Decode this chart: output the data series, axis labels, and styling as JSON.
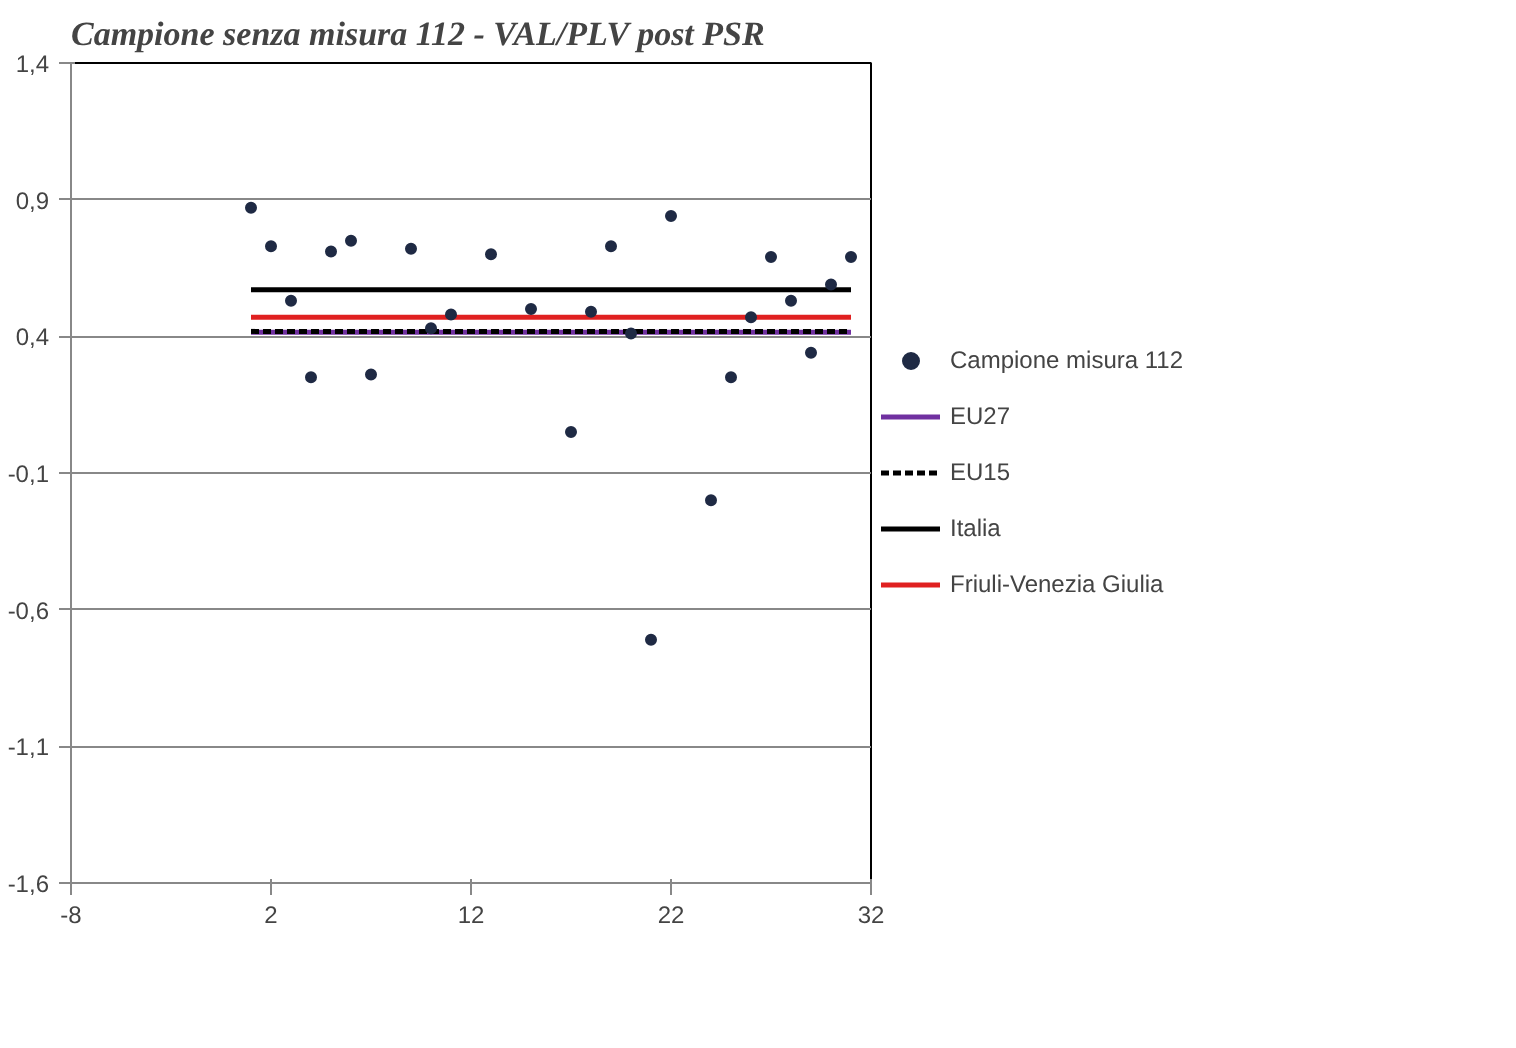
{
  "chart_data": {
    "type": "scatter",
    "title": "Campione senza misura 112 - VAL/PLV post PSR",
    "xlim": [
      -8,
      32
    ],
    "xticks": [
      -8,
      2,
      12,
      22,
      32
    ],
    "ylim": [
      -1.6,
      1.4
    ],
    "yticks": [
      {
        "value": -1.6,
        "label": "-1,6"
      },
      {
        "value": -1.1,
        "label": "-1,1"
      },
      {
        "value": -0.6,
        "label": "-0,6"
      },
      {
        "value": -0.1,
        "label": "-0,1"
      },
      {
        "value": 0.4,
        "label": "0,4"
      },
      {
        "value": 0.9,
        "label": "0,9"
      },
      {
        "value": 1.4,
        "label": "1,4"
      }
    ],
    "grid": "y",
    "legend": "right",
    "series": [
      {
        "name": "Campione misura 112",
        "marker": "circle",
        "color": "#1f2a44",
        "x": [
          1,
          2,
          3,
          4,
          5,
          6,
          7,
          9,
          10,
          11,
          13,
          15,
          17,
          18,
          19,
          20,
          21,
          22,
          24,
          25,
          26,
          27,
          28,
          29,
          30,
          31
        ],
        "values": [
          0.87,
          0.73,
          0.53,
          0.25,
          0.71,
          0.75,
          0.26,
          0.72,
          0.43,
          0.48,
          0.7,
          0.5,
          0.05,
          0.49,
          0.73,
          0.41,
          -0.71,
          0.84,
          -0.2,
          0.25,
          0.47,
          0.69,
          0.53,
          0.34,
          0.59,
          0.69
        ]
      },
      {
        "name": "EU27",
        "type": "line",
        "marker": "none",
        "color": "#7030a0",
        "line_style": "solid",
        "x": [
          1,
          31
        ],
        "values": [
          0.415,
          0.415
        ]
      },
      {
        "name": "EU15",
        "type": "line",
        "marker": "none",
        "color": "#000000",
        "line_style": "dashed",
        "x": [
          1,
          31
        ],
        "values": [
          0.418,
          0.418
        ]
      },
      {
        "name": "Italia",
        "type": "line",
        "marker": "none",
        "color": "#000000",
        "line_style": "solid",
        "x": [
          1,
          31
        ],
        "values": [
          0.57,
          0.57
        ]
      },
      {
        "name": "Friuli-Venezia Giulia",
        "type": "line",
        "marker": "none",
        "color": "#e02020",
        "line_style": "solid",
        "x": [
          1,
          31
        ],
        "values": [
          0.47,
          0.47
        ]
      }
    ]
  }
}
